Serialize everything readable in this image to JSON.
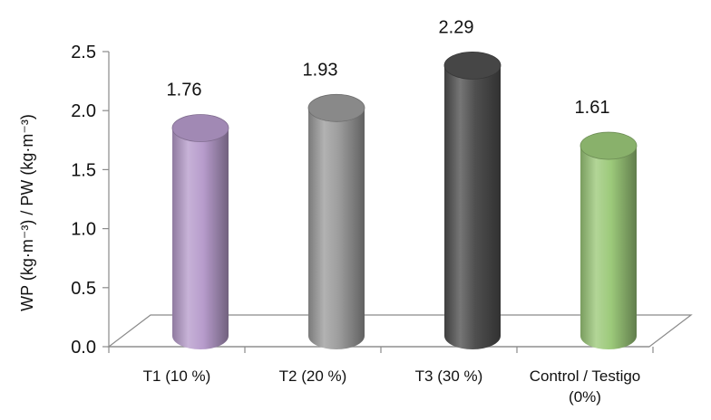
{
  "chart_data": {
    "type": "bar",
    "style": "3d-cylinder",
    "categories": [
      "T1 (10 %)",
      "T2 (20 %)",
      "T3 (30 %)",
      "Control / Testigo (0%)"
    ],
    "category_lines": [
      [
        "T1 (10 %)"
      ],
      [
        "T2 (20 %)"
      ],
      [
        "T3 (30 %)"
      ],
      [
        "Control / Testigo",
        "(0%)"
      ]
    ],
    "values": [
      1.76,
      1.93,
      2.29,
      1.61
    ],
    "value_labels": [
      "1.76",
      "1.93",
      "2.29",
      "1.61"
    ],
    "colors": [
      "#b79ccc",
      "#9c9c9c",
      "#4f4f4f",
      "#9cc97a"
    ],
    "ylabel": "WP (kg·m⁻³) / PW (kg·m⁻³)",
    "ylim": [
      0,
      2.5
    ],
    "yticks": [
      0,
      0.5,
      1,
      1.5,
      2,
      2.5
    ],
    "ytick_labels": [
      "0.0",
      "0.5",
      "1.0",
      "1.5",
      "2.0",
      "2.5"
    ],
    "grid": false,
    "legend": "none"
  }
}
